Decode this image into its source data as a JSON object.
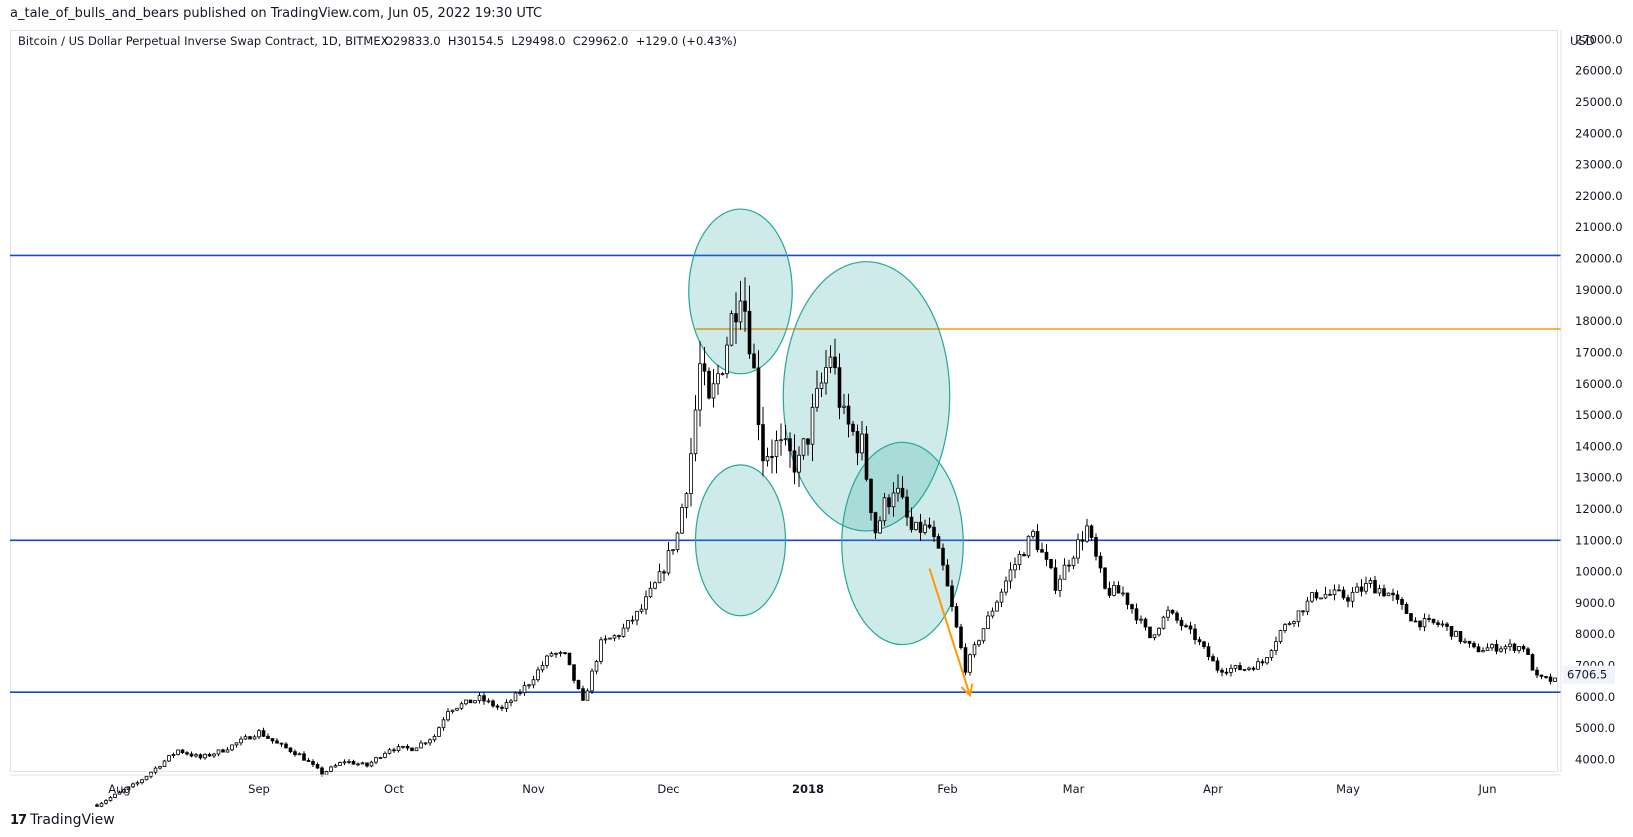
{
  "publisher_line": "a_tale_of_bulls_and_bears published on TradingView.com, Jun 05, 2022 19:30 UTC",
  "footer": {
    "brand": "TradingView",
    "logo_glyph": "17"
  },
  "chart_data": {
    "type": "candlestick",
    "title": "Bitcoin / US Dollar Perpetual Inverse Swap Contract, 1D, BITMEX",
    "ohlc_label": "O29833.0  H30154.5  L29498.0  C29962.0  +129.0 (+0.43%)",
    "currency": "USD",
    "y_axis": {
      "range": [
        3600,
        27300
      ],
      "ticks": [
        "4000.0",
        "5000.0",
        "6000.0",
        "7000.0",
        "8000.0",
        "9000.0",
        "10000.0",
        "11000.0",
        "12000.0",
        "13000.0",
        "14000.0",
        "15000.0",
        "16000.0",
        "17000.0",
        "18000.0",
        "19000.0",
        "20000.0",
        "21000.0",
        "22000.0",
        "23000.0",
        "24000.0",
        "25000.0",
        "26000.0",
        "27000.0"
      ],
      "tick_values": [
        4000,
        5000,
        6000,
        7000,
        8000,
        9000,
        10000,
        11000,
        12000,
        13000,
        14000,
        15000,
        16000,
        17000,
        18000,
        19000,
        20000,
        21000,
        22000,
        23000,
        24000,
        25000,
        26000,
        27000
      ],
      "last_price_label": "6706.5",
      "last_price": 6706.5
    },
    "x_axis": {
      "date_range": [
        "2017-07-27",
        "2018-06-16"
      ],
      "labels": [
        "Aug",
        "Sep",
        "Oct",
        "Nov",
        "Dec",
        "2018",
        "Feb",
        "Mar",
        "Apr",
        "May",
        "Jun"
      ],
      "label_dates": [
        "2017-08-01",
        "2017-09-01",
        "2017-10-01",
        "2017-11-01",
        "2017-12-01",
        "2018-01-01",
        "2018-02-01",
        "2018-03-01",
        "2018-04-01",
        "2018-05-01",
        "2018-06-01"
      ],
      "bold_labels": [
        "2018"
      ]
    },
    "grid": false,
    "horizontal_lines": [
      {
        "price": 20100,
        "color": "#1848cc"
      },
      {
        "price": 11000,
        "color": "#1848cc"
      },
      {
        "price": 6150,
        "color": "#1848cc"
      },
      {
        "price": 17750,
        "color": "#ff9800",
        "start_date": "2017-12-07"
      }
    ],
    "circles": [
      {
        "center_date": "2017-12-17",
        "center_price": 18950,
        "rx_days": 11.5,
        "ry_price": 2630
      },
      {
        "center_date": "2018-01-14",
        "center_price": 15600,
        "rx_days": 18.5,
        "ry_price": 4300
      },
      {
        "center_date": "2017-12-17",
        "center_price": 11000,
        "rx_days": 10,
        "ry_price": 2410
      },
      {
        "center_date": "2018-01-22",
        "center_price": 10900,
        "rx_days": 13.5,
        "ry_price": 3230
      }
    ],
    "arrow": {
      "from_date": "2018-01-28",
      "from_price": 10100,
      "to_date": "2018-02-06",
      "to_price": 6050,
      "color": "#ff9800"
    },
    "keypoints": [
      [
        "2017-07-27",
        2550
      ],
      [
        "2017-08-05",
        3250
      ],
      [
        "2017-08-14",
        4300
      ],
      [
        "2017-08-19",
        4050
      ],
      [
        "2017-08-24",
        4300
      ],
      [
        "2017-09-01",
        4880
      ],
      [
        "2017-09-05",
        4500
      ],
      [
        "2017-09-10",
        4150
      ],
      [
        "2017-09-15",
        3550
      ],
      [
        "2017-09-20",
        3950
      ],
      [
        "2017-09-25",
        3800
      ],
      [
        "2017-09-30",
        4350
      ],
      [
        "2017-10-05",
        4350
      ],
      [
        "2017-10-10",
        4750
      ],
      [
        "2017-10-13",
        5600
      ],
      [
        "2017-10-20",
        5950
      ],
      [
        "2017-10-25",
        5600
      ],
      [
        "2017-10-31",
        6450
      ],
      [
        "2017-11-05",
        7400
      ],
      [
        "2017-11-08",
        7300
      ],
      [
        "2017-11-12",
        5800
      ],
      [
        "2017-11-16",
        7700
      ],
      [
        "2017-11-20",
        8000
      ],
      [
        "2017-11-25",
        8800
      ],
      [
        "2017-11-29",
        9800
      ],
      [
        "2017-12-03",
        11200
      ],
      [
        "2017-12-06",
        13800
      ],
      [
        "2017-12-08",
        16500
      ],
      [
        "2017-12-10",
        15200
      ],
      [
        "2017-12-13",
        16800
      ],
      [
        "2017-12-17",
        19300
      ],
      [
        "2017-12-19",
        17600
      ],
      [
        "2017-12-22",
        13800
      ],
      [
        "2017-12-25",
        14000
      ],
      [
        "2017-12-30",
        13400
      ],
      [
        "2018-01-02",
        14900
      ],
      [
        "2018-01-06",
        17000
      ],
      [
        "2018-01-09",
        14800
      ],
      [
        "2018-01-13",
        14000
      ],
      [
        "2018-01-16",
        11300
      ],
      [
        "2018-01-20",
        12800
      ],
      [
        "2018-01-24",
        11300
      ],
      [
        "2018-01-28",
        11400
      ],
      [
        "2018-01-31",
        10100
      ],
      [
        "2018-02-05",
        6900
      ],
      [
        "2018-02-09",
        8200
      ],
      [
        "2018-02-15",
        10000
      ],
      [
        "2018-02-20",
        11200
      ],
      [
        "2018-02-25",
        9600
      ],
      [
        "2018-03-04",
        11400
      ],
      [
        "2018-03-08",
        9400
      ],
      [
        "2018-03-12",
        9300
      ],
      [
        "2018-03-18",
        7900
      ],
      [
        "2018-03-22",
        8700
      ],
      [
        "2018-03-28",
        7900
      ],
      [
        "2018-04-02",
        6900
      ],
      [
        "2018-04-08",
        6900
      ],
      [
        "2018-04-12",
        7100
      ],
      [
        "2018-04-16",
        8100
      ],
      [
        "2018-04-24",
        9300
      ],
      [
        "2018-05-01",
        9200
      ],
      [
        "2018-05-06",
        9600
      ],
      [
        "2018-05-10",
        9300
      ],
      [
        "2018-05-16",
        8400
      ],
      [
        "2018-05-22",
        8300
      ],
      [
        "2018-05-29",
        7500
      ],
      [
        "2018-06-04",
        7600
      ],
      [
        "2018-06-09",
        7600
      ],
      [
        "2018-06-12",
        6600
      ],
      [
        "2018-06-16",
        6500
      ]
    ]
  },
  "colors": {
    "candle_up": "#ffffff",
    "candle_down": "#000000",
    "wick": "#000000",
    "blue_line": "#1848cc",
    "orange": "#ff9800",
    "circle_fill": "rgba(38,166,154,0.22)",
    "circle_stroke": "#26a69a",
    "axis_text": "#131722",
    "price_tag_bg": "#f0f3fa"
  }
}
